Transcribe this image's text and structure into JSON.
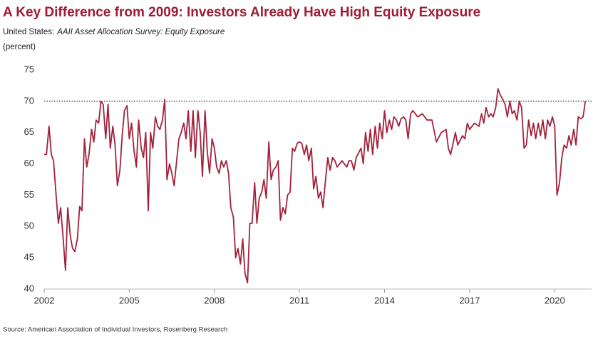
{
  "chart_data": {
    "type": "line",
    "title": "A Key Difference from 2009: Investors Already Have High Equity Exposure",
    "subtitle_prefix": "United States:",
    "subtitle": "AAII Asset Allocation Survey: Equity Exposure",
    "y_label": "(percent)",
    "source": "Source: American Association of Individual Investors, Rosenberg Research",
    "xlim": [
      2002,
      2021.3
    ],
    "xticks": [
      2002,
      2005,
      2008,
      2011,
      2014,
      2017,
      2020
    ],
    "ylim": [
      40,
      75
    ],
    "yticks": [
      40,
      45,
      50,
      55,
      60,
      65,
      70,
      75
    ],
    "hline": 70,
    "grid": false,
    "series": [
      {
        "name": "Equity Exposure",
        "color": "#a3213a",
        "x": [
          2002.0,
          2002.08,
          2002.17,
          2002.25,
          2002.33,
          2002.42,
          2002.5,
          2002.58,
          2002.67,
          2002.75,
          2002.83,
          2002.92,
          2003.0,
          2003.08,
          2003.17,
          2003.25,
          2003.33,
          2003.42,
          2003.5,
          2003.58,
          2003.67,
          2003.75,
          2003.83,
          2003.92,
          2004.0,
          2004.08,
          2004.17,
          2004.25,
          2004.33,
          2004.42,
          2004.5,
          2004.58,
          2004.67,
          2004.75,
          2004.83,
          2004.92,
          2005.0,
          2005.08,
          2005.17,
          2005.25,
          2005.33,
          2005.42,
          2005.5,
          2005.58,
          2005.67,
          2005.75,
          2005.83,
          2005.92,
          2006.0,
          2006.08,
          2006.17,
          2006.25,
          2006.33,
          2006.42,
          2006.5,
          2006.58,
          2006.67,
          2006.75,
          2006.83,
          2006.92,
          2007.0,
          2007.08,
          2007.17,
          2007.25,
          2007.33,
          2007.42,
          2007.5,
          2007.58,
          2007.67,
          2007.75,
          2007.83,
          2007.92,
          2008.0,
          2008.08,
          2008.17,
          2008.25,
          2008.33,
          2008.42,
          2008.5,
          2008.58,
          2008.67,
          2008.75,
          2008.83,
          2008.92,
          2009.0,
          2009.08,
          2009.17,
          2009.25,
          2009.33,
          2009.42,
          2009.5,
          2009.58,
          2009.67,
          2009.75,
          2009.83,
          2009.92,
          2010.0,
          2010.08,
          2010.17,
          2010.25,
          2010.33,
          2010.42,
          2010.5,
          2010.58,
          2010.67,
          2010.75,
          2010.83,
          2010.92,
          2011.0,
          2011.08,
          2011.17,
          2011.25,
          2011.33,
          2011.42,
          2011.5,
          2011.58,
          2011.67,
          2011.75,
          2011.83,
          2011.92,
          2012.0,
          2012.08,
          2012.17,
          2012.25,
          2012.33,
          2012.42,
          2012.5,
          2012.58,
          2012.67,
          2012.75,
          2012.83,
          2012.92,
          2013.0,
          2013.17,
          2013.25,
          2013.33,
          2013.42,
          2013.5,
          2013.58,
          2013.67,
          2013.75,
          2013.83,
          2013.92,
          2014.0,
          2014.08,
          2014.17,
          2014.25,
          2014.33,
          2014.42,
          2014.5,
          2014.58,
          2014.67,
          2014.75,
          2014.83,
          2014.92,
          2015.0,
          2015.17,
          2015.33,
          2015.5,
          2015.67,
          2015.83,
          2016.0,
          2016.17,
          2016.25,
          2016.33,
          2016.5,
          2016.58,
          2016.75,
          2016.83,
          2016.92,
          2017.0,
          2017.17,
          2017.33,
          2017.42,
          2017.5,
          2017.58,
          2017.67,
          2017.75,
          2017.83,
          2017.92,
          2018.0,
          2018.08,
          2018.17,
          2018.25,
          2018.33,
          2018.42,
          2018.5,
          2018.58,
          2018.67,
          2018.75,
          2018.83,
          2018.92,
          2019.0,
          2019.08,
          2019.17,
          2019.25,
          2019.33,
          2019.42,
          2019.5,
          2019.58,
          2019.67,
          2019.75,
          2019.83,
          2019.92,
          2020.0,
          2020.08,
          2020.17,
          2020.25,
          2020.33,
          2020.42,
          2020.5,
          2020.58,
          2020.67,
          2020.75,
          2020.83,
          2020.92,
          2021.0,
          2021.08
        ],
        "values": [
          61.5,
          61.5,
          66,
          61.5,
          60.5,
          55,
          50.5,
          53,
          48,
          43,
          53,
          48.5,
          46.5,
          46,
          48,
          53.2,
          52.5,
          64,
          59.5,
          61.5,
          65.5,
          63.5,
          67,
          66.5,
          70,
          69.5,
          64,
          69.5,
          62.5,
          66,
          63,
          56.5,
          59,
          64.5,
          68.5,
          69.3,
          64,
          66.5,
          62,
          59.5,
          67,
          62.5,
          61,
          65,
          52.5,
          65,
          62.5,
          67.5,
          66,
          65.5,
          67,
          70.3,
          57.5,
          60,
          58.5,
          56.5,
          60.5,
          64,
          65,
          66.5,
          64,
          68.5,
          62,
          68.5,
          61,
          68.5,
          65,
          58,
          68.5,
          62,
          58.5,
          64,
          62.5,
          59.5,
          58.5,
          60.5,
          59.5,
          60.5,
          58.5,
          53,
          51.5,
          45,
          46.5,
          44,
          48,
          42.5,
          41,
          50.5,
          50.5,
          57,
          50.5,
          54.5,
          55.5,
          57.5,
          54.5,
          63.5,
          57.5,
          59,
          59.5,
          60.5,
          51,
          53,
          52,
          55,
          55.5,
          62.5,
          62,
          63.3,
          63.5,
          63.3,
          61.5,
          63,
          60.5,
          62.5,
          56,
          58,
          54.5,
          55.5,
          53,
          57.5,
          61,
          59,
          61,
          60.5,
          59.5,
          60,
          60.5,
          60,
          59.5,
          60.5,
          60.5,
          59,
          61,
          62.5,
          60,
          65,
          62,
          65.5,
          61.5,
          66,
          62.5,
          66.5,
          64,
          68.5,
          65,
          67,
          65.5,
          67.5,
          67,
          66,
          67.2,
          67.5,
          67,
          64,
          68,
          68.5,
          67.5,
          68,
          67,
          67,
          63.5,
          65,
          65.5,
          62.5,
          61.5,
          65,
          63,
          64.5,
          64,
          66.5,
          65.5,
          66.5,
          66,
          68,
          66.5,
          69,
          67.5,
          68,
          67.5,
          69,
          72,
          71,
          70.3,
          69.5,
          67.5,
          70,
          68,
          68.5,
          67,
          70,
          69,
          62.5,
          63,
          67,
          64.5,
          66.5,
          64,
          66.5,
          64.5,
          67,
          64,
          67,
          66,
          67.5,
          66,
          55,
          57,
          61,
          63,
          62.5,
          64.5,
          63,
          65.5,
          63,
          67.5,
          67.2,
          67.5,
          70
        ]
      }
    ]
  }
}
